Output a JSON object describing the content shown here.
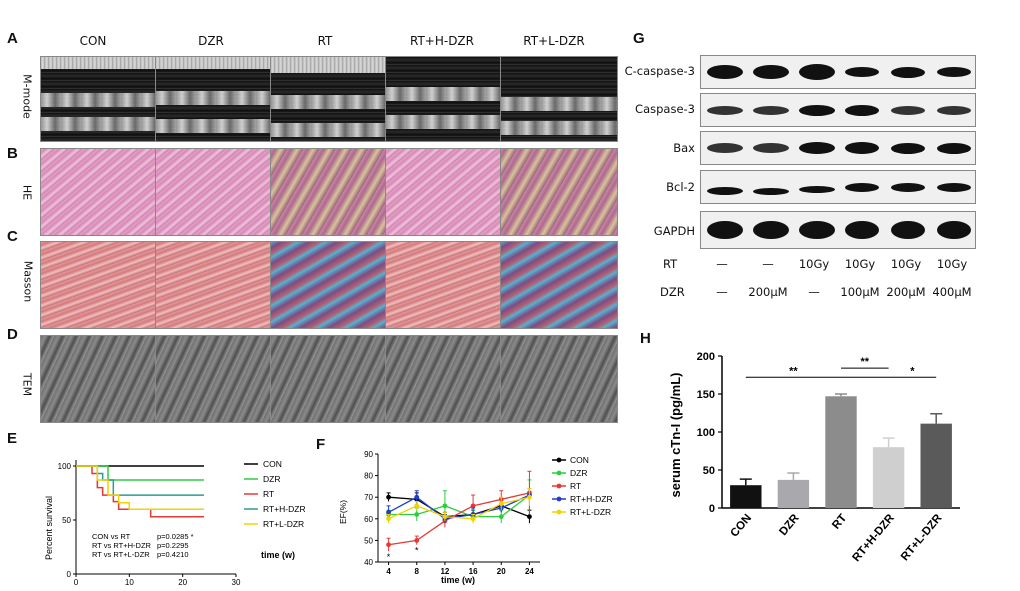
{
  "panel_letters": [
    "A",
    "B",
    "C",
    "D",
    "E",
    "F",
    "G",
    "H"
  ],
  "micrograph": {
    "columns": [
      "CON",
      "DZR",
      "RT",
      "RT+H-DZR",
      "RT+L-DZR"
    ],
    "rows": [
      "M-mode",
      "HE",
      "Masson",
      "TEM"
    ]
  },
  "western_blot": {
    "proteins": [
      "C-caspase-3",
      "Caspase-3",
      "Bax",
      "Bcl-2",
      "GAPDH"
    ],
    "rt_label": "RT",
    "dzr_label": "DZR",
    "rt_values": [
      "—",
      "—",
      "10Gy",
      "10Gy",
      "10Gy",
      "10Gy"
    ],
    "dzr_values": [
      "—",
      "200μM",
      "—",
      "100μM",
      "200μM",
      "400μM"
    ]
  },
  "chart_data": [
    {
      "panel": "E",
      "type": "line",
      "ylabel": "Percent survival",
      "xlabel": "time (w)",
      "xlim": [
        0,
        30
      ],
      "ylim": [
        0,
        100
      ],
      "xticks": [
        0,
        10,
        20,
        30
      ],
      "yticks": [
        0,
        50,
        100
      ],
      "series": [
        {
          "name": "CON",
          "color": "#000000",
          "steps": [
            [
              0,
              100
            ],
            [
              24,
              100
            ]
          ]
        },
        {
          "name": "DZR",
          "color": "#2ecc40",
          "steps": [
            [
              0,
              100
            ],
            [
              6,
              100
            ],
            [
              6,
              87
            ],
            [
              24,
              87
            ]
          ]
        },
        {
          "name": "RT",
          "color": "#e53935",
          "steps": [
            [
              0,
              100
            ],
            [
              3,
              100
            ],
            [
              3,
              93
            ],
            [
              4,
              93
            ],
            [
              4,
              80
            ],
            [
              5,
              80
            ],
            [
              5,
              73
            ],
            [
              7,
              73
            ],
            [
              7,
              67
            ],
            [
              8,
              67
            ],
            [
              8,
              60
            ],
            [
              14,
              60
            ],
            [
              14,
              53
            ],
            [
              24,
              53
            ]
          ]
        },
        {
          "name": "RT+H-DZR",
          "color": "#2a9d8f",
          "steps": [
            [
              0,
              100
            ],
            [
              4,
              100
            ],
            [
              4,
              93
            ],
            [
              5,
              93
            ],
            [
              5,
              87
            ],
            [
              7,
              87
            ],
            [
              7,
              73
            ],
            [
              24,
              73
            ]
          ]
        },
        {
          "name": "RT+L-DZR",
          "color": "#f2d200",
          "steps": [
            [
              0,
              100
            ],
            [
              4,
              100
            ],
            [
              4,
              87
            ],
            [
              6,
              87
            ],
            [
              6,
              73
            ],
            [
              8,
              73
            ],
            [
              8,
              66
            ],
            [
              10,
              66
            ],
            [
              10,
              60
            ],
            [
              24,
              60
            ]
          ]
        }
      ],
      "annotations": [
        "CON vs RT",
        "p=0.0285 *",
        "RT vs RT+H-DZR",
        "p=0.2295",
        "RT vs RT+L-DZR",
        "p=0.4210"
      ]
    },
    {
      "panel": "F",
      "type": "line",
      "ylabel": "EF(%)",
      "xlabel": "time (w)",
      "x": [
        4,
        8,
        12,
        16,
        20,
        24
      ],
      "ylim": [
        40,
        90
      ],
      "yticks": [
        40,
        50,
        60,
        70,
        80,
        90
      ],
      "series": [
        {
          "name": "CON",
          "color": "#000000",
          "values": [
            70,
            69,
            61,
            62,
            66,
            61
          ],
          "errors": [
            2,
            3,
            2,
            2,
            3,
            3
          ]
        },
        {
          "name": "DZR",
          "color": "#2ecc40",
          "values": [
            62,
            62,
            66,
            61,
            61,
            71
          ],
          "errors": [
            2,
            3,
            7,
            3,
            3,
            7
          ]
        },
        {
          "name": "RT",
          "color": "#e53935",
          "values": [
            48,
            50,
            59,
            66,
            69,
            72
          ],
          "errors": [
            3,
            2,
            3,
            5,
            4,
            10
          ]
        },
        {
          "name": "RT+H-DZR",
          "color": "#1f3fc7",
          "values": [
            63,
            70,
            60,
            62,
            65,
            71
          ],
          "errors": [
            3,
            3,
            2,
            3,
            2,
            3
          ]
        },
        {
          "name": "RT+L-DZR",
          "color": "#f2d200",
          "values": [
            60,
            66,
            61,
            60,
            67,
            70
          ],
          "errors": [
            2,
            2,
            2,
            2,
            3,
            4
          ]
        }
      ],
      "star_marks": [
        "*",
        "*"
      ]
    },
    {
      "panel": "H",
      "type": "bar",
      "ylabel": "serum cTn-I (pg/mL)",
      "categories": [
        "CON",
        "DZR",
        "RT",
        "RT+H-DZR",
        "RT+L-DZR"
      ],
      "values": [
        30,
        37,
        147,
        80,
        111
      ],
      "errors": [
        8,
        9,
        3,
        12,
        13
      ],
      "colors": [
        "#111111",
        "#a8a8ad",
        "#8c8c8c",
        "#cfcfcf",
        "#5a5a5a"
      ],
      "ylim": [
        0,
        200
      ],
      "yticks": [
        0,
        50,
        100,
        150,
        200
      ],
      "significance": [
        "**",
        "**",
        "*"
      ]
    }
  ]
}
